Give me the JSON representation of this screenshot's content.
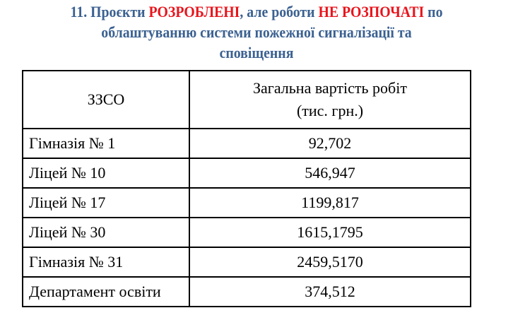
{
  "title": {
    "part1": "11. Проєкти ",
    "highlight1": "РОЗРОБЛЕНІ",
    "part2": ", але роботи ",
    "highlight2": "НЕ РОЗПОЧАТІ",
    "part3": " по",
    "line2": "облаштуванню системи пожежної сигналізації та",
    "line3": "сповіщення"
  },
  "colors": {
    "title": "#3b6191",
    "highlight": "#e8141c"
  },
  "table": {
    "headers": [
      "ЗЗСО",
      "Загальна вартість робіт",
      "(тис. грн.)"
    ],
    "rows": [
      {
        "name": "Гімназія № 1",
        "value": "92,702"
      },
      {
        "name": "Ліцей № 10",
        "value": "546,947"
      },
      {
        "name": "Ліцей № 17",
        "value": "1199,817"
      },
      {
        "name": "Ліцей № 30",
        "value": "1615,1795"
      },
      {
        "name": "Гімназія № 31",
        "value": "2459,5170"
      },
      {
        "name": "Департамент освіти",
        "value": "374,512"
      }
    ]
  }
}
